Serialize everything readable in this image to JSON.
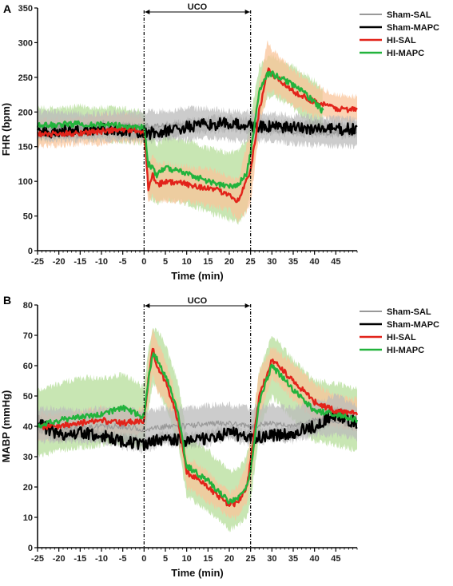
{
  "chart_data": [
    {
      "type": "line",
      "panel_label": "A",
      "xlabel": "Time (min)",
      "ylabel": "FHR (bpm)",
      "xlim": [
        -25,
        50
      ],
      "ylim": [
        0,
        350
      ],
      "xticks": [
        -25,
        -20,
        -15,
        -10,
        -5,
        0,
        5,
        10,
        15,
        20,
        25,
        30,
        35,
        40,
        45
      ],
      "yticks": [
        0,
        50,
        100,
        150,
        200,
        250,
        300,
        350
      ],
      "grid": false,
      "legend_position": "top-right",
      "annotation": {
        "label": "UCO",
        "start": 0,
        "end": 25
      },
      "series": [
        {
          "name": "Sham-SAL",
          "color": "#999999",
          "x": [
            -25,
            -20,
            -15,
            -10,
            -5,
            0,
            5,
            10,
            15,
            20,
            25,
            30,
            35,
            40,
            45,
            50
          ],
          "y": [
            178,
            180,
            176,
            178,
            180,
            179,
            180,
            182,
            183,
            180,
            178,
            175,
            172,
            170,
            170,
            168
          ],
          "band_color": "#bbbbbb",
          "band_lower": [
            160,
            160,
            158,
            160,
            158,
            160,
            160,
            160,
            162,
            160,
            158,
            158,
            155,
            152,
            152,
            150
          ],
          "band_upper": [
            200,
            200,
            198,
            198,
            200,
            200,
            202,
            205,
            205,
            202,
            200,
            198,
            195,
            192,
            192,
            190
          ]
        },
        {
          "name": "Sham-MAPC",
          "color": "#000000",
          "x": [
            -25,
            -20,
            -15,
            -10,
            -5,
            0,
            5,
            10,
            15,
            20,
            25,
            30,
            35,
            40,
            45,
            50
          ],
          "y": [
            170,
            172,
            173,
            175,
            174,
            168,
            172,
            178,
            182,
            183,
            180,
            178,
            177,
            176,
            175,
            175
          ],
          "band_color": "#888888",
          "band_lower": [
            162,
            164,
            165,
            166,
            165,
            158,
            162,
            170,
            172,
            174,
            170,
            168,
            168,
            166,
            165,
            165
          ],
          "band_upper": [
            180,
            180,
            182,
            184,
            183,
            178,
            182,
            188,
            192,
            193,
            190,
            188,
            187,
            186,
            185,
            185
          ]
        },
        {
          "name": "HI-SAL",
          "color": "#e2231a",
          "x": [
            -25,
            -20,
            -15,
            -10,
            -5,
            0,
            1,
            2,
            3,
            5,
            10,
            15,
            20,
            22,
            24,
            25,
            27,
            29,
            30,
            35,
            40,
            45,
            50
          ],
          "y": [
            168,
            168,
            170,
            172,
            175,
            172,
            90,
            112,
            95,
            100,
            96,
            90,
            82,
            72,
            100,
            115,
            200,
            260,
            255,
            230,
            215,
            205,
            203
          ],
          "band_color": "#f9c49a",
          "band_lower": [
            152,
            152,
            155,
            155,
            158,
            155,
            70,
            80,
            70,
            72,
            70,
            65,
            58,
            45,
            55,
            70,
            170,
            228,
            230,
            210,
            195,
            188,
            185
          ],
          "band_upper": [
            188,
            190,
            192,
            195,
            196,
            192,
            120,
            140,
            125,
            125,
            122,
            118,
            108,
            100,
            150,
            175,
            240,
            300,
            290,
            260,
            240,
            225,
            222
          ]
        },
        {
          "name": "HI-MAPC",
          "color": "#22b33c",
          "x": [
            -25,
            -20,
            -15,
            -10,
            -5,
            0,
            1,
            2,
            3,
            5,
            10,
            15,
            20,
            22,
            24,
            25,
            27,
            29,
            30,
            35,
            40,
            42
          ],
          "y": [
            180,
            182,
            183,
            182,
            180,
            178,
            125,
            120,
            108,
            120,
            112,
            100,
            92,
            95,
            110,
            140,
            230,
            255,
            255,
            240,
            215,
            200
          ],
          "band_color": "#b5dd9a",
          "band_lower": [
            158,
            160,
            162,
            160,
            158,
            155,
            80,
            75,
            70,
            75,
            68,
            55,
            45,
            40,
            55,
            90,
            190,
            220,
            225,
            205,
            180,
            168
          ],
          "band_upper": [
            205,
            205,
            208,
            206,
            205,
            200,
            160,
            165,
            150,
            165,
            158,
            148,
            140,
            145,
            160,
            190,
            265,
            282,
            280,
            265,
            245,
            230
          ]
        }
      ]
    },
    {
      "type": "line",
      "panel_label": "B",
      "xlabel": "Time (min)",
      "ylabel": "MABP (mmHg)",
      "xlim": [
        -25,
        50
      ],
      "ylim": [
        0,
        80
      ],
      "xticks": [
        -25,
        -20,
        -15,
        -10,
        -5,
        0,
        5,
        10,
        15,
        20,
        25,
        30,
        35,
        40,
        45
      ],
      "yticks": [
        0,
        10,
        20,
        30,
        40,
        50,
        60,
        70,
        80
      ],
      "grid": false,
      "legend_position": "top-right",
      "annotation": {
        "label": "UCO",
        "start": 0,
        "end": 25
      },
      "series": [
        {
          "name": "Sham-SAL",
          "color": "#999999",
          "x": [
            -25,
            -20,
            -15,
            -10,
            -5,
            0,
            5,
            10,
            15,
            20,
            25,
            30,
            35,
            40,
            45,
            50
          ],
          "y": [
            40,
            40,
            39,
            40,
            40,
            39,
            40,
            40,
            41,
            41,
            40,
            41,
            40,
            42,
            42,
            41
          ],
          "band_color": "#bbbbbb",
          "band_lower": [
            35,
            35,
            35,
            35,
            35,
            34,
            35,
            35,
            36,
            36,
            35,
            36,
            35,
            37,
            37,
            36
          ],
          "band_upper": [
            46,
            46,
            45,
            46,
            46,
            45,
            46,
            46,
            47,
            47,
            46,
            47,
            46,
            48,
            50,
            47
          ]
        },
        {
          "name": "Sham-MAPC",
          "color": "#000000",
          "x": [
            -25,
            -20,
            -15,
            -10,
            -5,
            0,
            5,
            10,
            15,
            20,
            25,
            30,
            35,
            40,
            45,
            50
          ],
          "y": [
            41,
            37,
            38,
            37,
            35,
            34,
            36,
            35,
            36,
            38,
            36,
            37,
            38,
            40,
            44,
            41
          ],
          "band_color": "#888888",
          "band_lower": [
            39,
            35,
            36,
            35,
            33,
            32,
            34,
            33,
            34,
            36,
            34,
            35,
            36,
            38,
            42,
            39
          ],
          "band_upper": [
            43,
            39,
            40,
            39,
            37,
            36,
            38,
            37,
            38,
            40,
            38,
            39,
            40,
            42,
            46,
            43
          ]
        },
        {
          "name": "HI-SAL",
          "color": "#e2231a",
          "x": [
            -25,
            -20,
            -15,
            -10,
            -5,
            0,
            1,
            2,
            3,
            5,
            8,
            10,
            15,
            20,
            22,
            24,
            25,
            27,
            30,
            35,
            40,
            45,
            50
          ],
          "y": [
            40,
            40,
            41,
            42,
            41,
            42,
            55,
            66,
            60,
            55,
            42,
            25,
            20,
            14,
            15,
            20,
            28,
            50,
            62,
            55,
            48,
            45,
            44
          ],
          "band_color": "#f9c49a",
          "band_lower": [
            36,
            36,
            37,
            38,
            37,
            38,
            48,
            58,
            52,
            48,
            36,
            20,
            15,
            10,
            10,
            15,
            20,
            42,
            56,
            49,
            42,
            40,
            39
          ],
          "band_upper": [
            44,
            44,
            45,
            46,
            45,
            46,
            62,
            72,
            68,
            62,
            48,
            30,
            25,
            18,
            20,
            27,
            36,
            58,
            66,
            61,
            54,
            50,
            49
          ]
        },
        {
          "name": "HI-MAPC",
          "color": "#22b33c",
          "x": [
            -25,
            -20,
            -15,
            -10,
            -5,
            0,
            1,
            2,
            3,
            5,
            8,
            10,
            15,
            20,
            22,
            24,
            25,
            27,
            30,
            35,
            40,
            45,
            50
          ],
          "y": [
            40,
            42,
            43,
            44,
            46,
            43,
            55,
            64,
            62,
            57,
            44,
            27,
            22,
            15,
            16,
            20,
            25,
            48,
            60,
            52,
            45,
            44,
            42
          ],
          "band_color": "#b5dd9a",
          "band_lower": [
            30,
            32,
            33,
            34,
            35,
            33,
            45,
            54,
            52,
            47,
            34,
            17,
            12,
            6,
            7,
            10,
            15,
            38,
            50,
            42,
            35,
            34,
            32
          ],
          "band_upper": [
            52,
            54,
            56,
            56,
            57,
            53,
            65,
            72,
            72,
            67,
            54,
            37,
            32,
            25,
            26,
            30,
            35,
            58,
            70,
            62,
            55,
            54,
            52
          ]
        }
      ]
    }
  ]
}
